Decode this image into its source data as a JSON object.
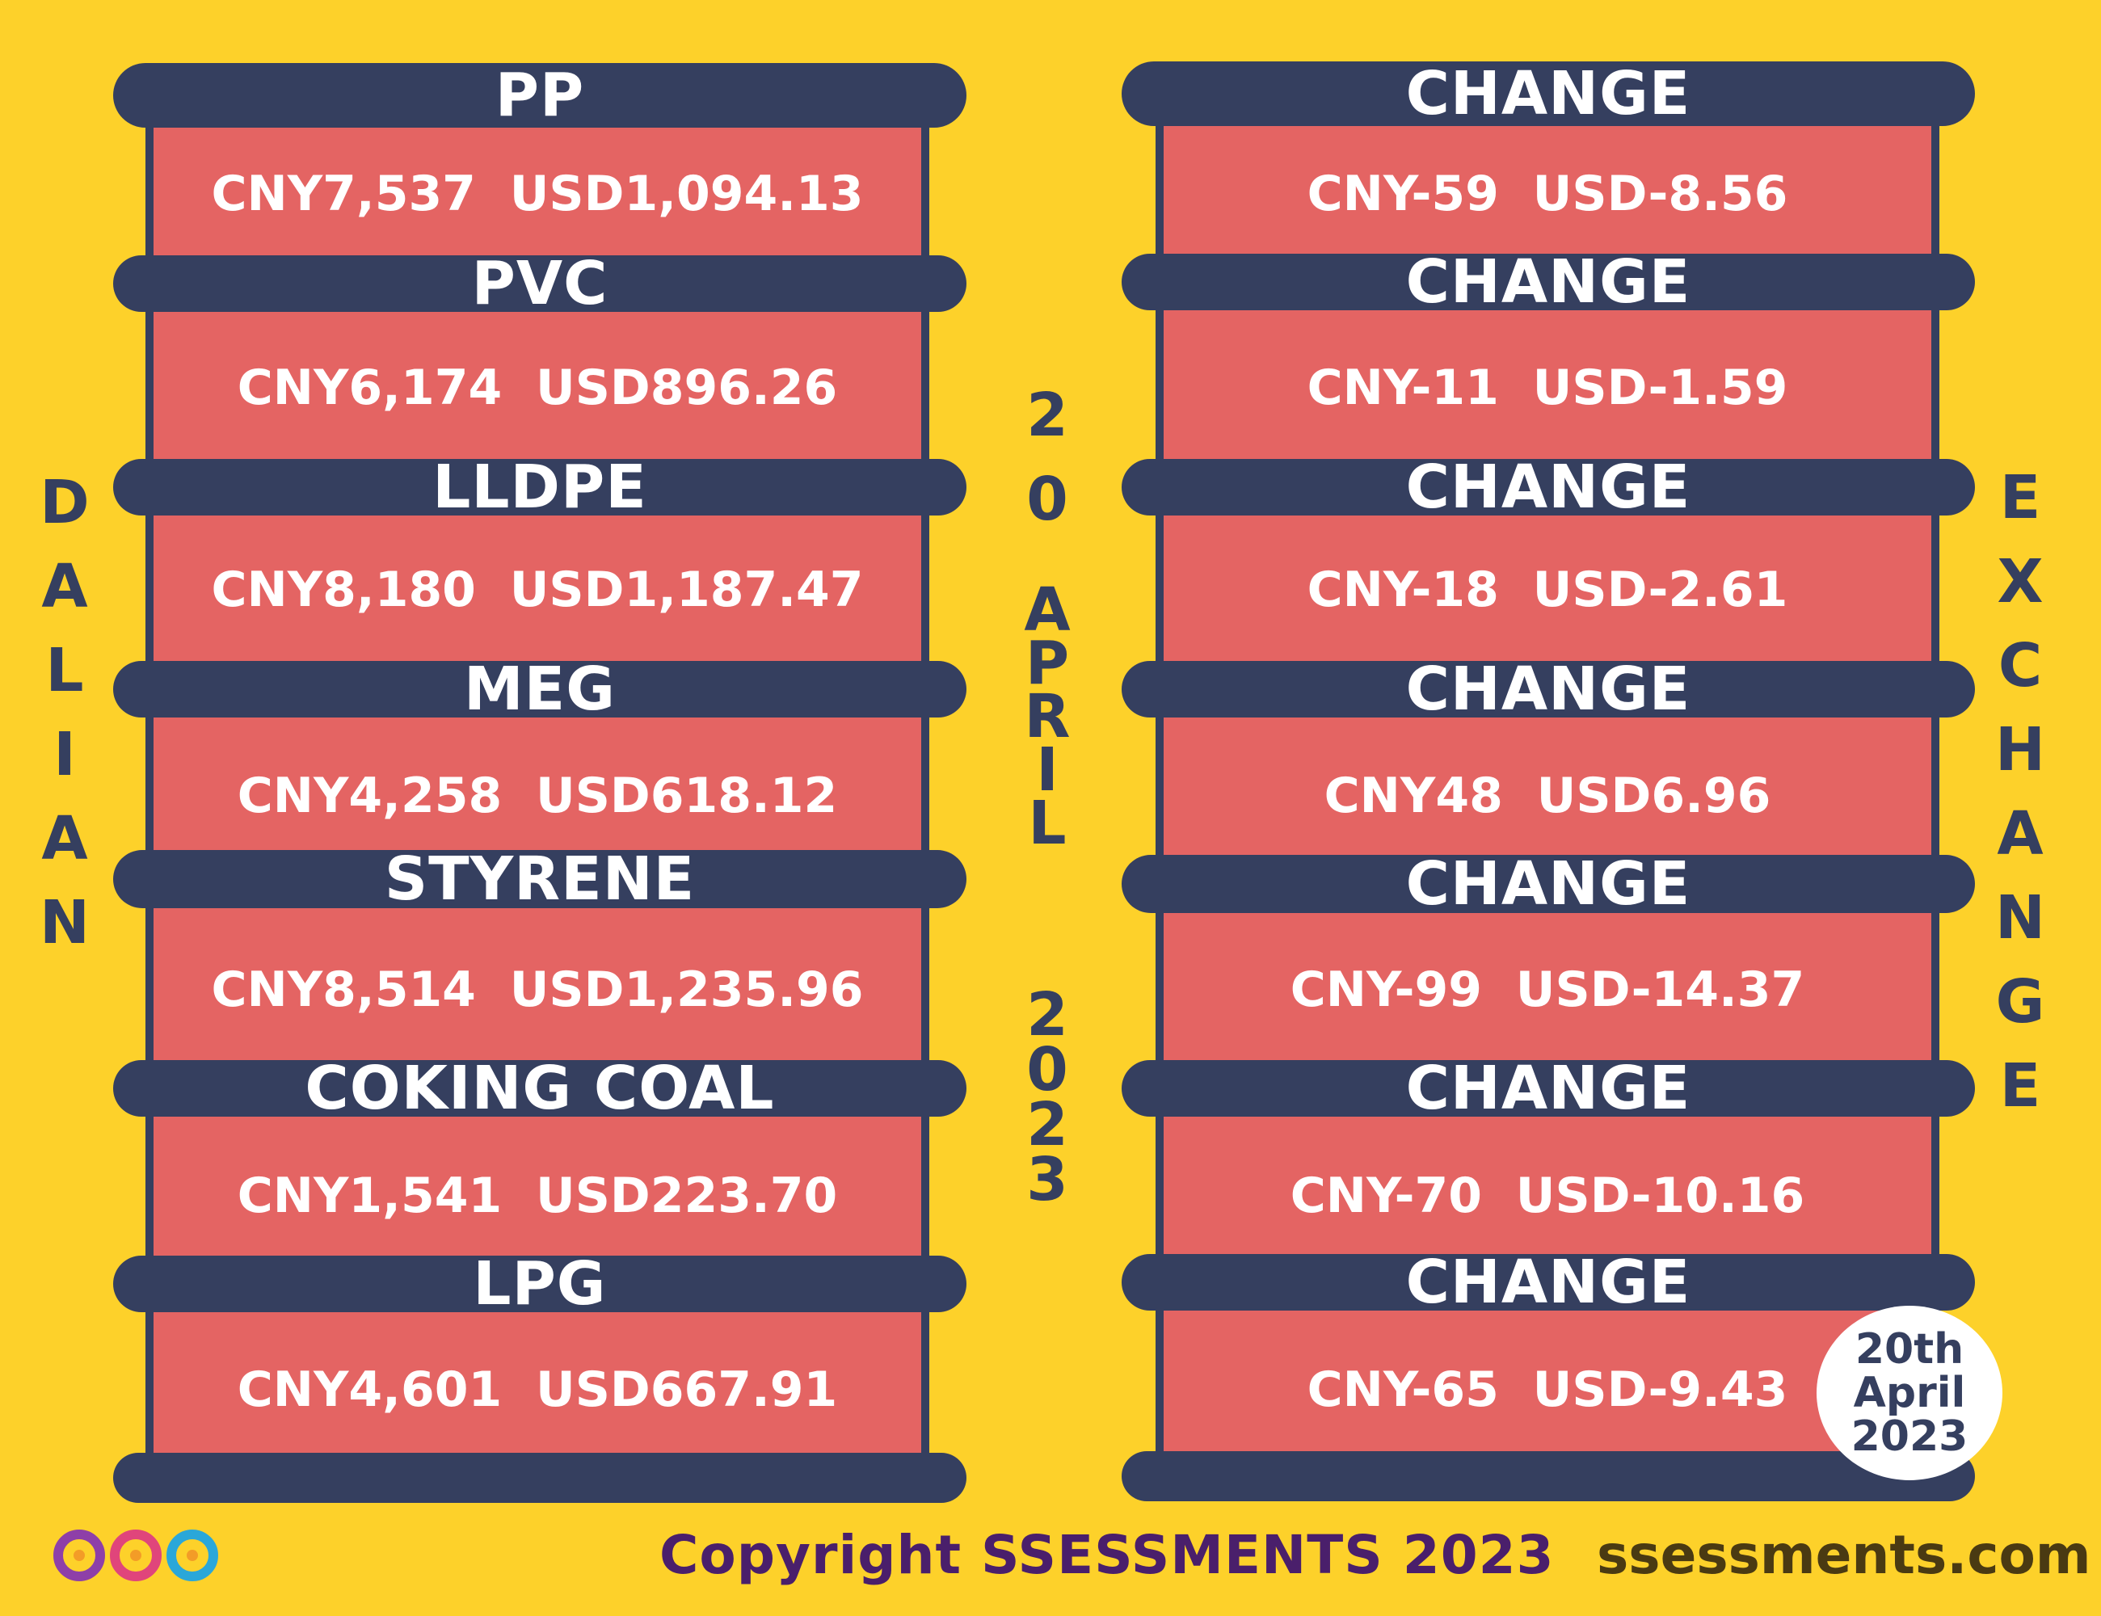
{
  "left_column": {
    "vertical_label": "DALIAN",
    "items": [
      {
        "name": "PP",
        "value": "CNY7,537  USD1,094.13"
      },
      {
        "name": "PVC",
        "value": "CNY6,174  USD896.26"
      },
      {
        "name": "LLDPE",
        "value": "CNY8,180  USD1,187.47"
      },
      {
        "name": "MEG",
        "value": "CNY4,258  USD618.12"
      },
      {
        "name": "STYRENE",
        "value": "CNY8,514  USD1,235.96"
      },
      {
        "name": "COKING COAL",
        "value": "CNY1,541  USD223.70"
      },
      {
        "name": "LPG",
        "value": "CNY4,601  USD667.91"
      }
    ]
  },
  "right_column": {
    "vertical_label": "EXCHANGE",
    "items": [
      {
        "name": "CHANGE",
        "value": "CNY-59  USD-8.56"
      },
      {
        "name": "CHANGE",
        "value": "CNY-11  USD-1.59"
      },
      {
        "name": "CHANGE",
        "value": "CNY-18  USD-2.61"
      },
      {
        "name": "CHANGE",
        "value": "CNY48  USD6.96"
      },
      {
        "name": "CHANGE",
        "value": "CNY-99  USD-14.37"
      },
      {
        "name": "CHANGE",
        "value": "CNY-70  USD-10.16"
      },
      {
        "name": "CHANGE",
        "value": "CNY-65  USD-9.43"
      }
    ]
  },
  "center_date": {
    "day": "20",
    "month": "APRIL",
    "year": "2023"
  },
  "stamp": {
    "line1": "20th",
    "line2": "April",
    "line3": "2023"
  },
  "footer": {
    "copyright": "Copyright SSESSMENTS 2023",
    "website": "ssessments.com",
    "logo_icon": "ssessments-logo-icon"
  },
  "colors": {
    "background": "#fdd12a",
    "bar": "#353f5f",
    "panel": "#e46463",
    "footer_text": "#4a1f6b"
  }
}
